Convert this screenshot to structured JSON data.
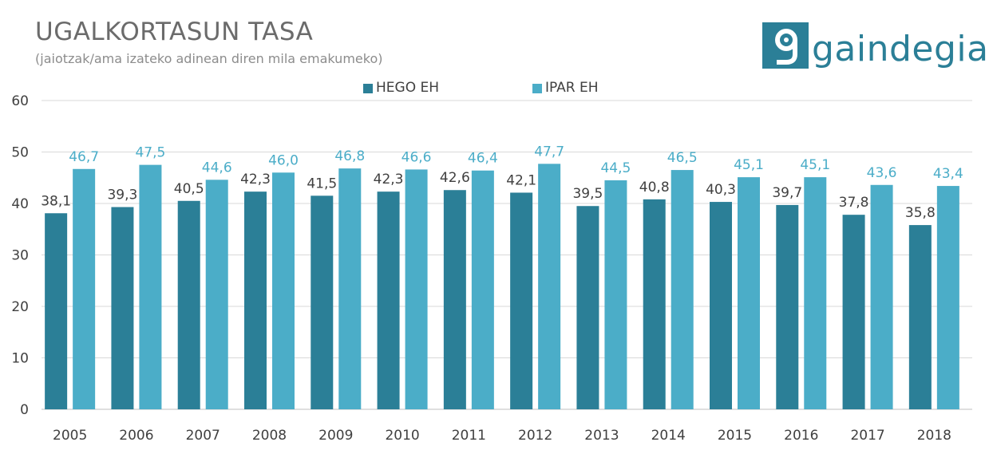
{
  "header": {
    "title": "UGALKORTASUN TASA",
    "subtitle": "(jaiotzak/ama izateko adinean diren mila emakumeko)"
  },
  "logo": {
    "text": "gaindegia",
    "color": "#2b7f97"
  },
  "colors": {
    "hego": "#2b7f97",
    "ipar": "#4badc8",
    "hego_label": "#404040",
    "ipar_label": "#4badc8"
  },
  "chart_data": {
    "type": "bar",
    "title": "UGALKORTASUN TASA",
    "subtitle": "(jaiotzak/ama izateko adinean diren mila emakumeko)",
    "categories": [
      "2005",
      "2006",
      "2007",
      "2008",
      "2009",
      "2010",
      "2011",
      "2012",
      "2013",
      "2014",
      "2015",
      "2016",
      "2017",
      "2018"
    ],
    "series": [
      {
        "name": "HEGO EH",
        "values": [
          38.1,
          39.3,
          40.5,
          42.3,
          41.5,
          42.3,
          42.6,
          42.1,
          39.5,
          40.8,
          40.3,
          39.7,
          37.8,
          35.8
        ],
        "labels": [
          "38,1",
          "39,3",
          "40,5",
          "42,3",
          "41,5",
          "42,3",
          "42,6",
          "42,1",
          "39,5",
          "40,8",
          "40,3",
          "39,7",
          "37,8",
          "35,8"
        ]
      },
      {
        "name": "IPAR EH",
        "values": [
          46.7,
          47.5,
          44.6,
          46.0,
          46.8,
          46.6,
          46.4,
          47.7,
          44.5,
          46.5,
          45.1,
          45.1,
          43.6,
          43.4
        ],
        "labels": [
          "46,7",
          "47,5",
          "44,6",
          "46,0",
          "46,8",
          "46,6",
          "46,4",
          "47,7",
          "44,5",
          "46,5",
          "45,1",
          "45,1",
          "43,6",
          "43,4"
        ]
      }
    ],
    "ylim": [
      0,
      60
    ],
    "yticks": [
      "0",
      "10",
      "20",
      "30",
      "40",
      "50",
      "60"
    ],
    "grid": true,
    "legend": "top-center"
  }
}
